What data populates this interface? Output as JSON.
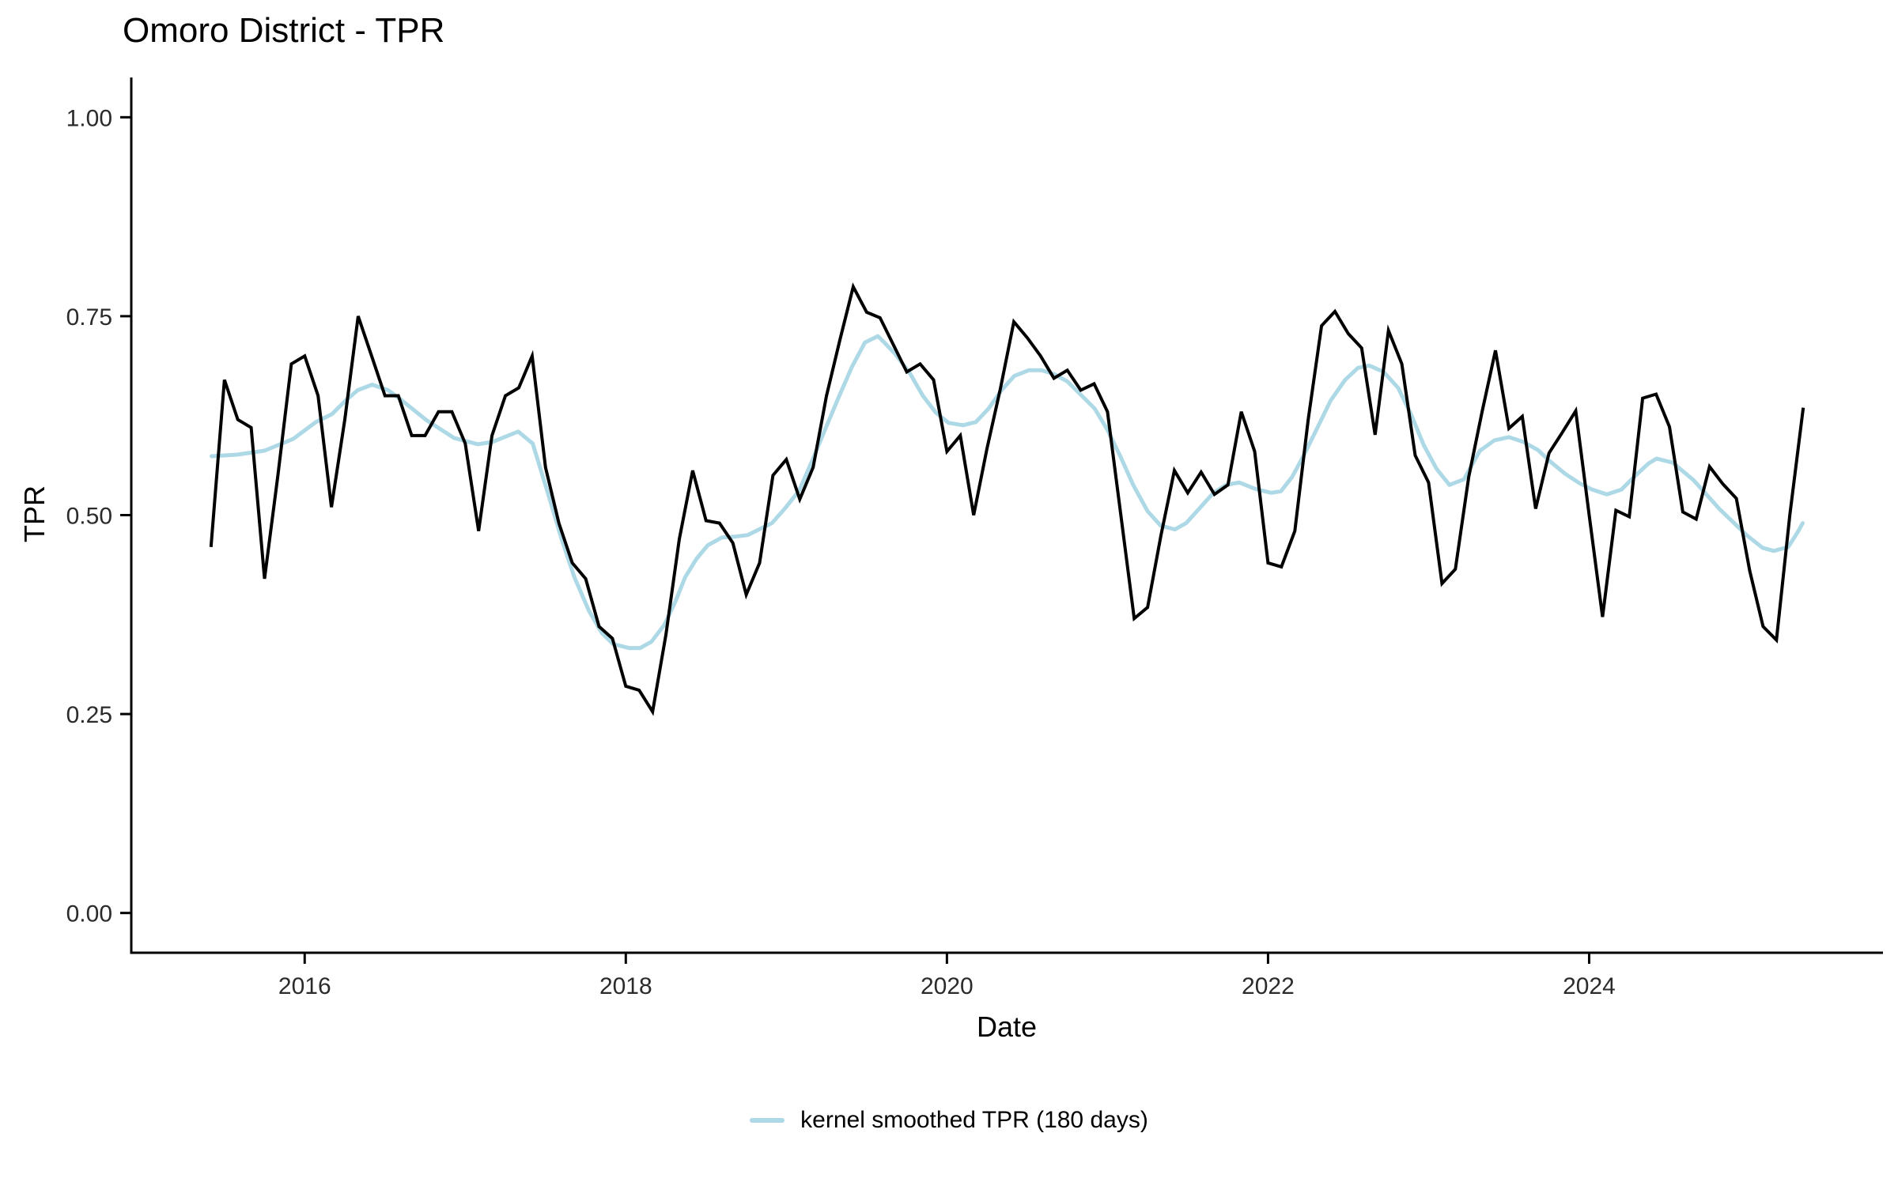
{
  "title": "Omoro District - TPR",
  "axis": {
    "x_label": "Date",
    "y_label": "TPR"
  },
  "colors": {
    "background": "#ffffff",
    "axis_line": "#000000",
    "tick_text": "#2b2b2b",
    "tpr_line": "#000000",
    "smoothed_line": "#ADD8E6"
  },
  "legend": {
    "position": "bottom-center",
    "items": [
      {
        "label": "kernel smoothed TPR (180 days)",
        "swatch": "line",
        "color": "#ADD8E6"
      }
    ]
  },
  "chart_data": {
    "type": "line",
    "title": "Omoro District - TPR",
    "xlabel": "Date",
    "ylabel": "TPR",
    "xlim": [
      2014.92,
      2025.83
    ],
    "ylim": [
      -0.05,
      1.05
    ],
    "grid": false,
    "legend_position": "bottom",
    "x_ticks": {
      "values": [
        2016,
        2018,
        2020,
        2022,
        2024
      ],
      "labels": [
        "2016",
        "2018",
        "2020",
        "2022",
        "2024"
      ]
    },
    "y_ticks": {
      "values": [
        0,
        0.25,
        0.5,
        0.75,
        1
      ],
      "labels": [
        "0.00",
        "0.25",
        "0.50",
        "0.75",
        "1.00"
      ]
    },
    "series": [
      {
        "name": "TPR",
        "type": "line",
        "color": "#000000",
        "width": 4,
        "x_start": 2015.4167,
        "x_step": 0.083333,
        "values": [
          0.46,
          0.67,
          0.62,
          0.61,
          0.42,
          0.55,
          0.69,
          0.7,
          0.65,
          0.51,
          0.62,
          0.75,
          0.7,
          0.65,
          0.65,
          0.6,
          0.6,
          0.63,
          0.63,
          0.59,
          0.48,
          0.6,
          0.65,
          0.66,
          0.7,
          0.56,
          0.49,
          0.44,
          0.42,
          0.36,
          0.345,
          0.285,
          0.28,
          0.253,
          0.35,
          0.47,
          0.556,
          0.493,
          0.49,
          0.465,
          0.4,
          0.44,
          0.55,
          0.57,
          0.52,
          0.56,
          0.65,
          0.72,
          0.787,
          0.755,
          0.748,
          0.714,
          0.68,
          0.69,
          0.67,
          0.58,
          0.6,
          0.5,
          0.584,
          0.659,
          0.743,
          0.723,
          0.7,
          0.672,
          0.682,
          0.657,
          0.665,
          0.63,
          0.5,
          0.37,
          0.384,
          0.475,
          0.556,
          0.528,
          0.554,
          0.526,
          0.538,
          0.63,
          0.58,
          0.44,
          0.435,
          0.48,
          0.62,
          0.738,
          0.756,
          0.728,
          0.71,
          0.601,
          0.732,
          0.69,
          0.575,
          0.541,
          0.414,
          0.432,
          0.548,
          0.63,
          0.707,
          0.609,
          0.624,
          0.508,
          0.578,
          0.604,
          0.631,
          0.5,
          0.372,
          0.506,
          0.498,
          0.647,
          0.652,
          0.611,
          0.504,
          0.495,
          0.561,
          0.539,
          0.521,
          0.43,
          0.36,
          0.343,
          0.5,
          0.635
        ]
      },
      {
        "name": "kernel smoothed TPR (180 days)",
        "type": "line",
        "color": "#ADD8E6",
        "width": 5,
        "points": [
          [
            2015.42,
            0.574
          ],
          [
            2015.58,
            0.576
          ],
          [
            2015.75,
            0.581
          ],
          [
            2015.93,
            0.596
          ],
          [
            2016.07,
            0.617
          ],
          [
            2016.17,
            0.627
          ],
          [
            2016.26,
            0.645
          ],
          [
            2016.33,
            0.657
          ],
          [
            2016.42,
            0.664
          ],
          [
            2016.52,
            0.657
          ],
          [
            2016.6,
            0.645
          ],
          [
            2016.76,
            0.619
          ],
          [
            2016.93,
            0.597
          ],
          [
            2017.08,
            0.589
          ],
          [
            2017.17,
            0.592
          ],
          [
            2017.33,
            0.605
          ],
          [
            2017.42,
            0.59
          ],
          [
            2017.52,
            0.524
          ],
          [
            2017.6,
            0.47
          ],
          [
            2017.68,
            0.422
          ],
          [
            2017.77,
            0.38
          ],
          [
            2017.85,
            0.352
          ],
          [
            2017.92,
            0.338
          ],
          [
            2018.02,
            0.333
          ],
          [
            2018.09,
            0.333
          ],
          [
            2018.16,
            0.341
          ],
          [
            2018.24,
            0.362
          ],
          [
            2018.31,
            0.392
          ],
          [
            2018.37,
            0.422
          ],
          [
            2018.44,
            0.445
          ],
          [
            2018.51,
            0.462
          ],
          [
            2018.6,
            0.472
          ],
          [
            2018.68,
            0.473
          ],
          [
            2018.76,
            0.475
          ],
          [
            2018.83,
            0.482
          ],
          [
            2018.91,
            0.49
          ],
          [
            2018.99,
            0.508
          ],
          [
            2019.08,
            0.531
          ],
          [
            2019.16,
            0.568
          ],
          [
            2019.24,
            0.607
          ],
          [
            2019.33,
            0.65
          ],
          [
            2019.41,
            0.687
          ],
          [
            2019.49,
            0.717
          ],
          [
            2019.57,
            0.725
          ],
          [
            2019.61,
            0.717
          ],
          [
            2019.68,
            0.702
          ],
          [
            2019.77,
            0.678
          ],
          [
            2019.85,
            0.65
          ],
          [
            2019.93,
            0.629
          ],
          [
            2020.01,
            0.616
          ],
          [
            2020.1,
            0.613
          ],
          [
            2020.18,
            0.617
          ],
          [
            2020.26,
            0.634
          ],
          [
            2020.34,
            0.657
          ],
          [
            2020.42,
            0.675
          ],
          [
            2020.51,
            0.682
          ],
          [
            2020.59,
            0.682
          ],
          [
            2020.67,
            0.677
          ],
          [
            2020.75,
            0.668
          ],
          [
            2020.84,
            0.65
          ],
          [
            2020.92,
            0.634
          ],
          [
            2021.0,
            0.607
          ],
          [
            2021.08,
            0.574
          ],
          [
            2021.16,
            0.538
          ],
          [
            2021.25,
            0.505
          ],
          [
            2021.33,
            0.487
          ],
          [
            2021.42,
            0.482
          ],
          [
            2021.49,
            0.49
          ],
          [
            2021.58,
            0.51
          ],
          [
            2021.66,
            0.528
          ],
          [
            2021.74,
            0.538
          ],
          [
            2021.82,
            0.541
          ],
          [
            2021.92,
            0.533
          ],
          [
            2022.02,
            0.528
          ],
          [
            2022.08,
            0.53
          ],
          [
            2022.15,
            0.548
          ],
          [
            2022.23,
            0.578
          ],
          [
            2022.31,
            0.611
          ],
          [
            2022.39,
            0.644
          ],
          [
            2022.48,
            0.67
          ],
          [
            2022.56,
            0.685
          ],
          [
            2022.63,
            0.688
          ],
          [
            2022.72,
            0.68
          ],
          [
            2022.81,
            0.66
          ],
          [
            2022.89,
            0.627
          ],
          [
            2022.97,
            0.588
          ],
          [
            2023.05,
            0.558
          ],
          [
            2023.13,
            0.538
          ],
          [
            2023.22,
            0.545
          ],
          [
            2023.32,
            0.581
          ],
          [
            2023.41,
            0.594
          ],
          [
            2023.5,
            0.598
          ],
          [
            2023.59,
            0.592
          ],
          [
            2023.68,
            0.582
          ],
          [
            2023.76,
            0.567
          ],
          [
            2023.85,
            0.552
          ],
          [
            2023.94,
            0.54
          ],
          [
            2024.02,
            0.532
          ],
          [
            2024.11,
            0.526
          ],
          [
            2024.2,
            0.532
          ],
          [
            2024.28,
            0.548
          ],
          [
            2024.37,
            0.565
          ],
          [
            2024.42,
            0.571
          ],
          [
            2024.52,
            0.566
          ],
          [
            2024.65,
            0.544
          ],
          [
            2024.81,
            0.508
          ],
          [
            2024.98,
            0.475
          ],
          [
            2025.08,
            0.459
          ],
          [
            2025.15,
            0.455
          ],
          [
            2025.24,
            0.46
          ],
          [
            2025.3,
            0.479
          ],
          [
            2025.33,
            0.49
          ]
        ]
      }
    ]
  }
}
